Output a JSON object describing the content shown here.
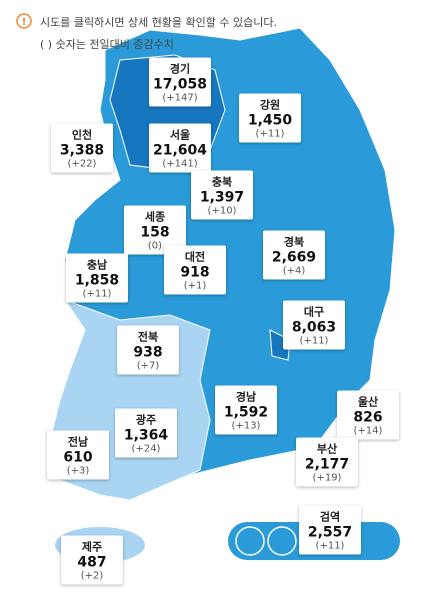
{
  "notice": {
    "line1": "시도를 클릭하시면 상세 현황을 확인할 수 있습니다.",
    "line2": "( ) 숫자는 전일대비 증감수치"
  },
  "regions": [
    {
      "name": "경기",
      "count": "17,058",
      "change": "(+147)"
    },
    {
      "name": "강원",
      "count": "1,450",
      "change": "(+11)"
    },
    {
      "name": "인천",
      "count": "3,388",
      "change": "(+22)"
    },
    {
      "name": "서울",
      "count": "21,604",
      "change": "(+141)"
    },
    {
      "name": "충북",
      "count": "1,397",
      "change": "(+10)"
    },
    {
      "name": "세종",
      "count": "158",
      "change": "(0)"
    },
    {
      "name": "경북",
      "count": "2,669",
      "change": "(+4)"
    },
    {
      "name": "충남",
      "count": "1,858",
      "change": "(+11)"
    },
    {
      "name": "대전",
      "count": "918",
      "change": "(+1)"
    },
    {
      "name": "대구",
      "count": "8,063",
      "change": "(+11)"
    },
    {
      "name": "전북",
      "count": "938",
      "change": "(+7)"
    },
    {
      "name": "경남",
      "count": "1,592",
      "change": "(+13)"
    },
    {
      "name": "울산",
      "count": "826",
      "change": "(+14)"
    },
    {
      "name": "광주",
      "count": "1,364",
      "change": "(+24)"
    },
    {
      "name": "전남",
      "count": "610",
      "change": "(+3)"
    },
    {
      "name": "부산",
      "count": "2,177",
      "change": "(+19)"
    },
    {
      "name": "검역",
      "count": "2,557",
      "change": "(+11)"
    },
    {
      "name": "제주",
      "count": "487",
      "change": "(+2)"
    }
  ]
}
